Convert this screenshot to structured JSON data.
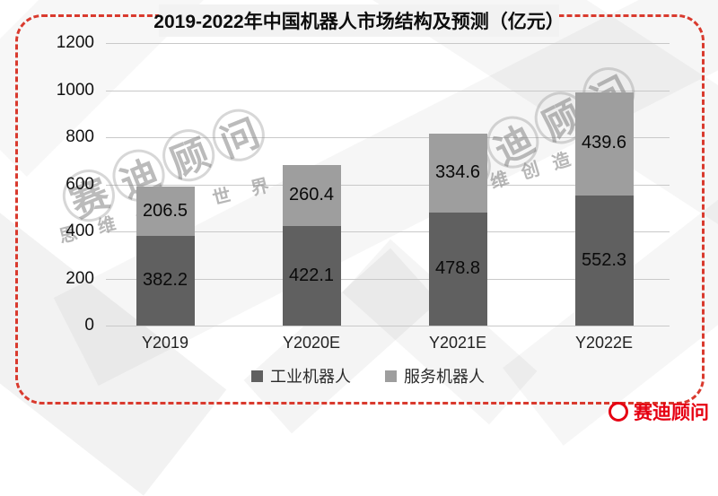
{
  "title": {
    "text": "2019-2022年中国机器人市场结构及预测（亿元）"
  },
  "chart_data": {
    "type": "bar",
    "stacked": true,
    "title": "2019-2022年中国机器人市场结构及预测（亿元）",
    "categories": [
      "Y2019",
      "Y2020E",
      "Y2021E",
      "Y2022E"
    ],
    "series": [
      {
        "name": "工业机器人",
        "values": [
          382.2,
          422.1,
          478.8,
          552.3
        ],
        "color": "#606060"
      },
      {
        "name": "服务机器人",
        "values": [
          206.5,
          260.4,
          334.6,
          439.6
        ],
        "color": "#9e9e9e"
      }
    ],
    "xlabel": "",
    "ylabel": "",
    "ylim": [
      0,
      1200
    ],
    "yticks": [
      0,
      200,
      400,
      600,
      800,
      1000,
      1200
    ],
    "grid": true,
    "legend_position": "bottom"
  },
  "watermark": {
    "brand": "赛迪顾问",
    "slogan": "思维创造世界"
  },
  "corner_logo": {
    "text": "赛迪顾问"
  },
  "colors": {
    "border_red": "#d93a2e",
    "logo_red": "#e60012",
    "bar_industrial": "#606060",
    "bar_service": "#9e9e9e",
    "gridline": "#c9c9c9"
  }
}
